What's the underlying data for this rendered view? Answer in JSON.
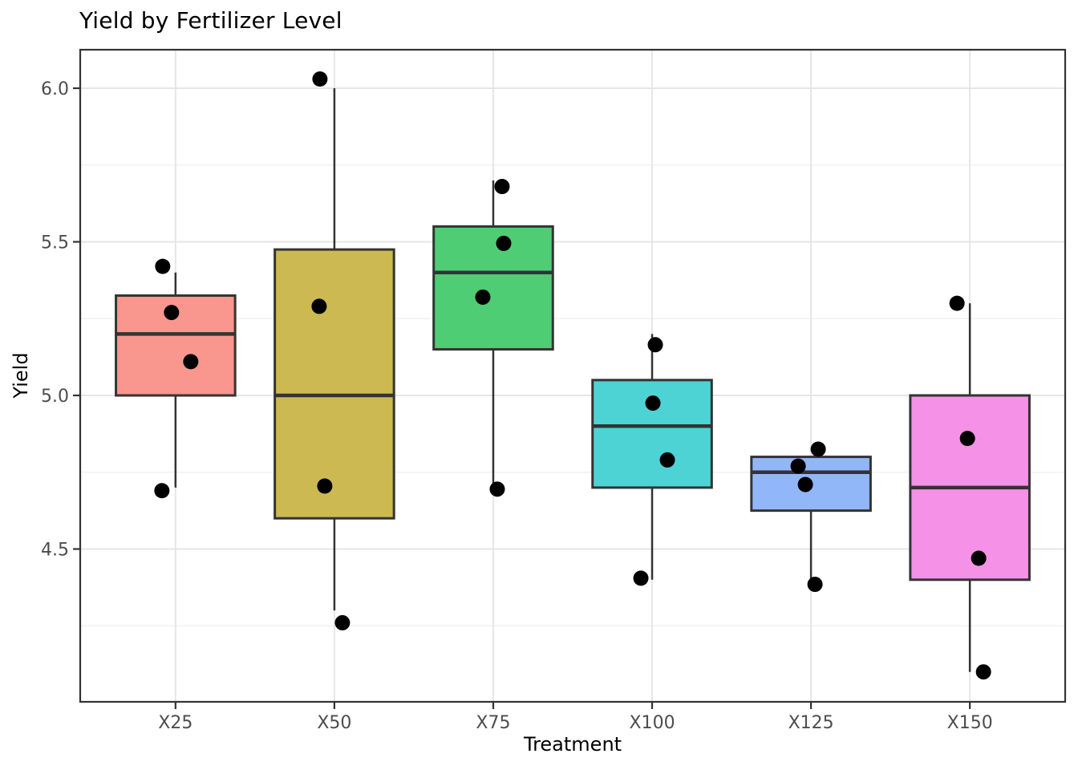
{
  "chart_data": {
    "type": "boxplot",
    "title": "Yield by Fertilizer Level",
    "xlabel": "Treatment",
    "ylabel": "Yield",
    "categories": [
      "X25",
      "X50",
      "X75",
      "X100",
      "X125",
      "X150"
    ],
    "y_ticks": [
      6.0,
      5.5,
      5.0,
      4.5
    ],
    "y_tick_labels": [
      "6.0",
      "5.5",
      "5.0",
      "4.5"
    ],
    "y_minor_ticks": [
      5.75,
      5.25,
      4.75,
      4.25
    ],
    "ylim": [
      4.0,
      6.125
    ],
    "legend": "none",
    "grid": "on",
    "series": [
      {
        "category": "X25",
        "fill": "#F9968E",
        "whisker_low": 4.7,
        "q1": 5.0,
        "median": 5.2,
        "q3": 5.325,
        "whisker_high": 5.4,
        "points": [
          {
            "y": 5.42,
            "dx": -16
          },
          {
            "y": 5.27,
            "dx": -5
          },
          {
            "y": 5.11,
            "dx": 19
          },
          {
            "y": 4.69,
            "dx": -17
          }
        ]
      },
      {
        "category": "X50",
        "fill": "#CCB952",
        "whisker_low": 4.3,
        "q1": 4.6,
        "median": 5.0,
        "q3": 5.475,
        "whisker_high": 6.0,
        "points": [
          {
            "y": 6.03,
            "dx": -18
          },
          {
            "y": 5.29,
            "dx": -19
          },
          {
            "y": 4.705,
            "dx": -12
          },
          {
            "y": 4.26,
            "dx": 10
          }
        ]
      },
      {
        "category": "X75",
        "fill": "#4FCD74",
        "whisker_low": 4.7,
        "q1": 5.15,
        "median": 5.4,
        "q3": 5.55,
        "whisker_high": 5.7,
        "points": [
          {
            "y": 5.68,
            "dx": 11
          },
          {
            "y": 5.495,
            "dx": 13
          },
          {
            "y": 5.32,
            "dx": -13
          },
          {
            "y": 4.695,
            "dx": 5
          }
        ]
      },
      {
        "category": "X100",
        "fill": "#4ED3D5",
        "whisker_low": 4.4,
        "q1": 4.7,
        "median": 4.9,
        "q3": 5.05,
        "whisker_high": 5.2,
        "points": [
          {
            "y": 5.165,
            "dx": 4
          },
          {
            "y": 4.975,
            "dx": 1
          },
          {
            "y": 4.79,
            "dx": 19
          },
          {
            "y": 4.405,
            "dx": -14
          }
        ]
      },
      {
        "category": "X125",
        "fill": "#92B7F9",
        "whisker_low": 4.4,
        "q1": 4.625,
        "median": 4.75,
        "q3": 4.8,
        "whisker_high": 4.8,
        "points": [
          {
            "y": 4.825,
            "dx": 9
          },
          {
            "y": 4.77,
            "dx": -16
          },
          {
            "y": 4.71,
            "dx": -7
          },
          {
            "y": 4.385,
            "dx": 5
          }
        ]
      },
      {
        "category": "X150",
        "fill": "#F591E6",
        "whisker_low": 4.1,
        "q1": 4.4,
        "median": 4.7,
        "q3": 5.0,
        "whisker_high": 5.3,
        "points": [
          {
            "y": 5.3,
            "dx": -16
          },
          {
            "y": 4.86,
            "dx": -3
          },
          {
            "y": 4.47,
            "dx": 11
          },
          {
            "y": 4.1,
            "dx": 17
          }
        ]
      }
    ],
    "colors": {
      "background": "#FFFFFF",
      "panel_background": "#FFFFFF",
      "panel_border": "#333333",
      "box_stroke": "#333333",
      "median_stroke": "#333333",
      "whisker_stroke": "#333333",
      "point_fill": "#000000",
      "grid_major": "#E5E5E5",
      "grid_minor": "#F1F1F1",
      "tick_mark": "#333333",
      "tick_label": "#4D4D4D",
      "title_color": "#000000",
      "axis_title_color": "#000000"
    }
  }
}
